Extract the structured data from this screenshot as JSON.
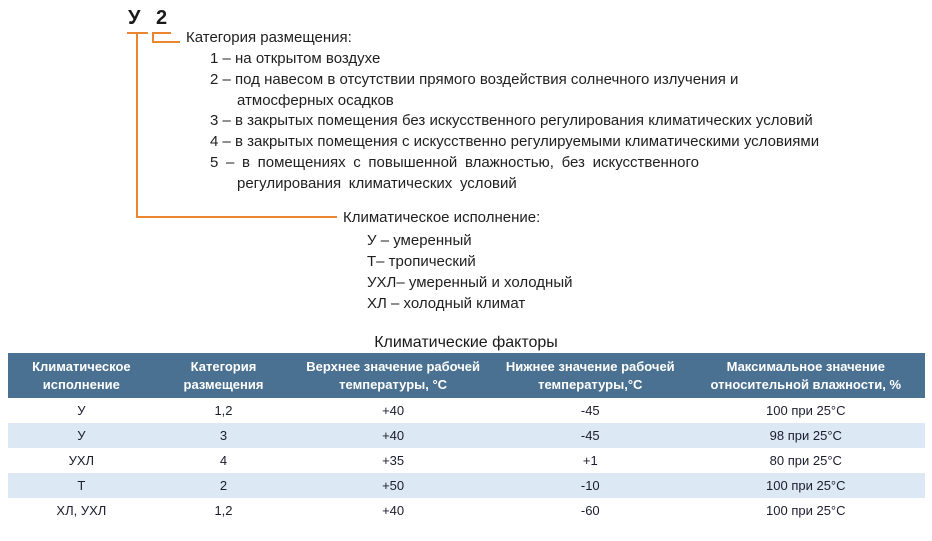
{
  "diagram": {
    "code": {
      "climate_letter": "У",
      "category_digit": "2"
    },
    "category": {
      "label": "Категория размещения:",
      "items": [
        "1 – на открытом воздухе",
        "2 – под навесом в отсутствии прямого воздействия солнечного излучения и\nатмосферных осадков",
        "3 – в закрытых помещения без искусственного регулирования климатических условий",
        "4 – в закрытых помещения с искусственно регулируемыми климатическими условиями",
        "5 – в помещениях с повышенной влажностью, без искусственного\nрегулирования климатических условий"
      ]
    },
    "climate": {
      "label": "Климатическое исполнение:",
      "items": [
        "У – умеренный",
        "Т– тропический",
        "УХЛ– умеренный и холодный",
        "ХЛ – холодный климат"
      ]
    }
  },
  "table": {
    "title": "Климатические факторы",
    "headers": [
      "Климатическое исполнение",
      "Категория размещения",
      "Верхнее значение рабочей температуры, °С",
      "Нижнее значение рабочей температуры,°С",
      "Максимальное значение относительной влажности, %"
    ],
    "rows": [
      [
        "У",
        "1,2",
        "+40",
        "-45",
        "100 при 25°С"
      ],
      [
        "У",
        "3",
        "+40",
        "-45",
        "98 при 25°С"
      ],
      [
        "УХЛ",
        "4",
        "+35",
        "+1",
        "80 при 25°С"
      ],
      [
        "Т",
        "2",
        "+50",
        "-10",
        "100 при 25°С"
      ],
      [
        "ХЛ, УХЛ",
        "1,2",
        "+40",
        "-60",
        "100 при 25°С"
      ]
    ]
  },
  "colors": {
    "accent_orange": "#E8872F",
    "header_bg": "#4A7192",
    "row_alt_bg": "#DCE8F4",
    "header_text": "#FFFFFF",
    "body_text": "#1C1C30"
  }
}
